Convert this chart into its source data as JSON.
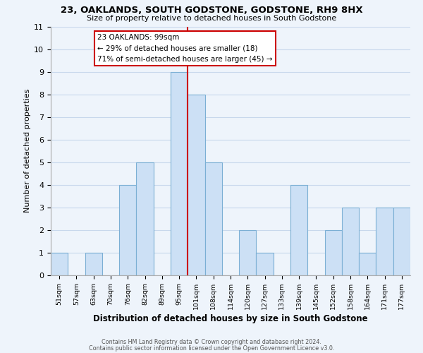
{
  "title": "23, OAKLANDS, SOUTH GODSTONE, GODSTONE, RH9 8HX",
  "subtitle": "Size of property relative to detached houses in South Godstone",
  "xlabel": "Distribution of detached houses by size in South Godstone",
  "ylabel": "Number of detached properties",
  "bar_color": "#cce0f5",
  "bar_edge_color": "#7bafd4",
  "categories": [
    "51sqm",
    "57sqm",
    "63sqm",
    "70sqm",
    "76sqm",
    "82sqm",
    "89sqm",
    "95sqm",
    "101sqm",
    "108sqm",
    "114sqm",
    "120sqm",
    "127sqm",
    "133sqm",
    "139sqm",
    "145sqm",
    "152sqm",
    "158sqm",
    "164sqm",
    "171sqm",
    "177sqm"
  ],
  "values": [
    1,
    0,
    1,
    0,
    4,
    5,
    0,
    9,
    8,
    5,
    0,
    2,
    1,
    0,
    4,
    0,
    2,
    3,
    1,
    3,
    3
  ],
  "ylim": [
    0,
    11
  ],
  "yticks": [
    0,
    1,
    2,
    3,
    4,
    5,
    6,
    7,
    8,
    9,
    10,
    11
  ],
  "marker_index": 7,
  "marker_label": "23 OAKLANDS: 99sqm",
  "annotation_line1": "← 29% of detached houses are smaller (18)",
  "annotation_line2": "71% of semi-detached houses are larger (45) →",
  "marker_color": "#cc0000",
  "annotation_box_edge": "#cc0000",
  "footer_line1": "Contains HM Land Registry data © Crown copyright and database right 2024.",
  "footer_line2": "Contains public sector information licensed under the Open Government Licence v3.0.",
  "grid_color": "#c8d8ec",
  "background_color": "#eef4fb"
}
